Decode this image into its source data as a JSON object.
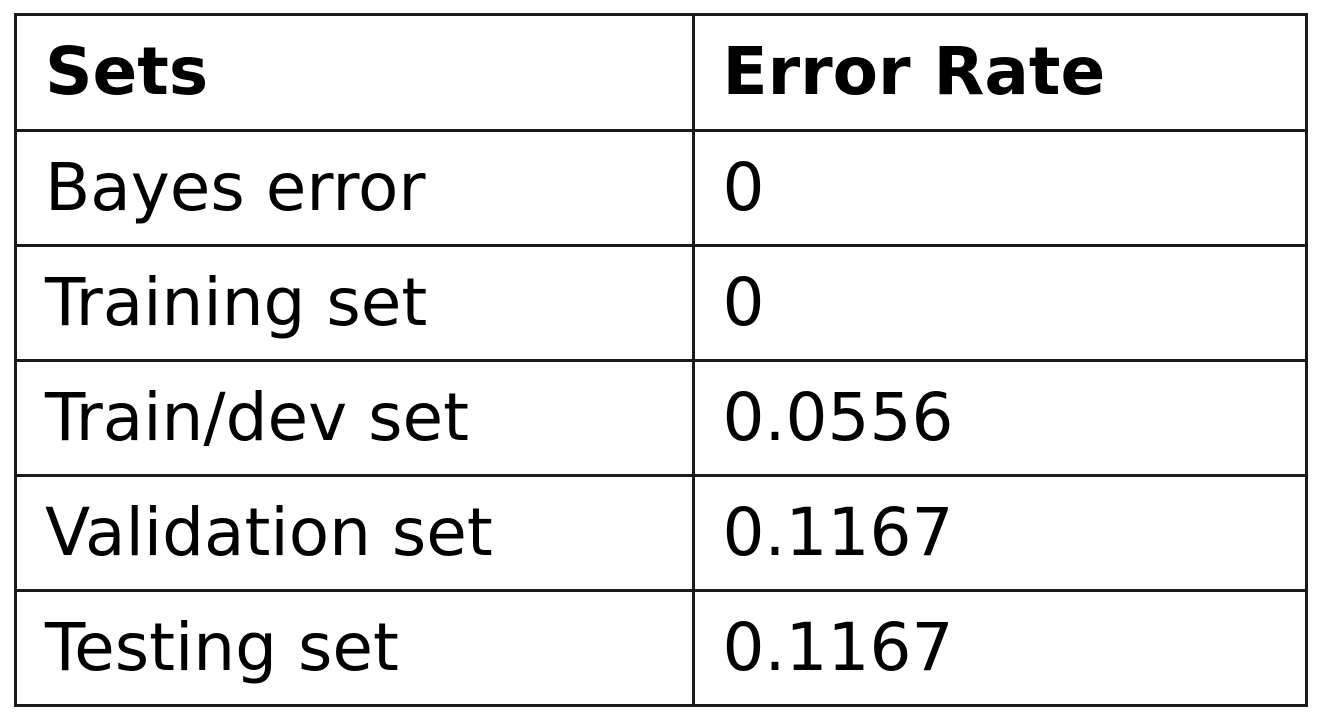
{
  "table": {
    "headers": [
      "Sets",
      "Error Rate"
    ],
    "rows": [
      [
        "Bayes error",
        "0"
      ],
      [
        "Training set",
        "0"
      ],
      [
        "Train/dev set",
        "0.0556"
      ],
      [
        "Validation set",
        "0.1167"
      ],
      [
        "Testing set",
        "0.1167"
      ]
    ]
  },
  "colors": {
    "border": "#1a1a1a",
    "text": "#000000",
    "background": "#ffffff"
  }
}
